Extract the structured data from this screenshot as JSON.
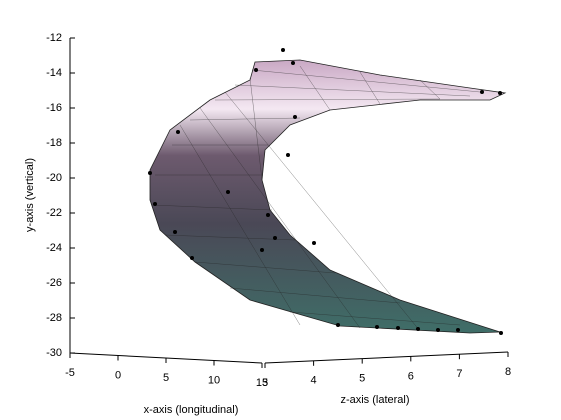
{
  "chart_data": {
    "type": "surface3d",
    "xlabel": "x-axis (longitudinal)",
    "ylabel": "y-axis (vertical)",
    "zlabel": "z-axis (lateral)",
    "ylim": [
      -30,
      -12
    ],
    "yticks": [
      -12,
      -14,
      -16,
      -18,
      -20,
      -22,
      -24,
      -26,
      -28,
      -30
    ],
    "xlim": [
      -5,
      15
    ],
    "xticks": [
      -5,
      0,
      5,
      10,
      15
    ],
    "zlim": [
      3,
      8
    ],
    "zticks": [
      3,
      4,
      5,
      6,
      7,
      8
    ]
  }
}
